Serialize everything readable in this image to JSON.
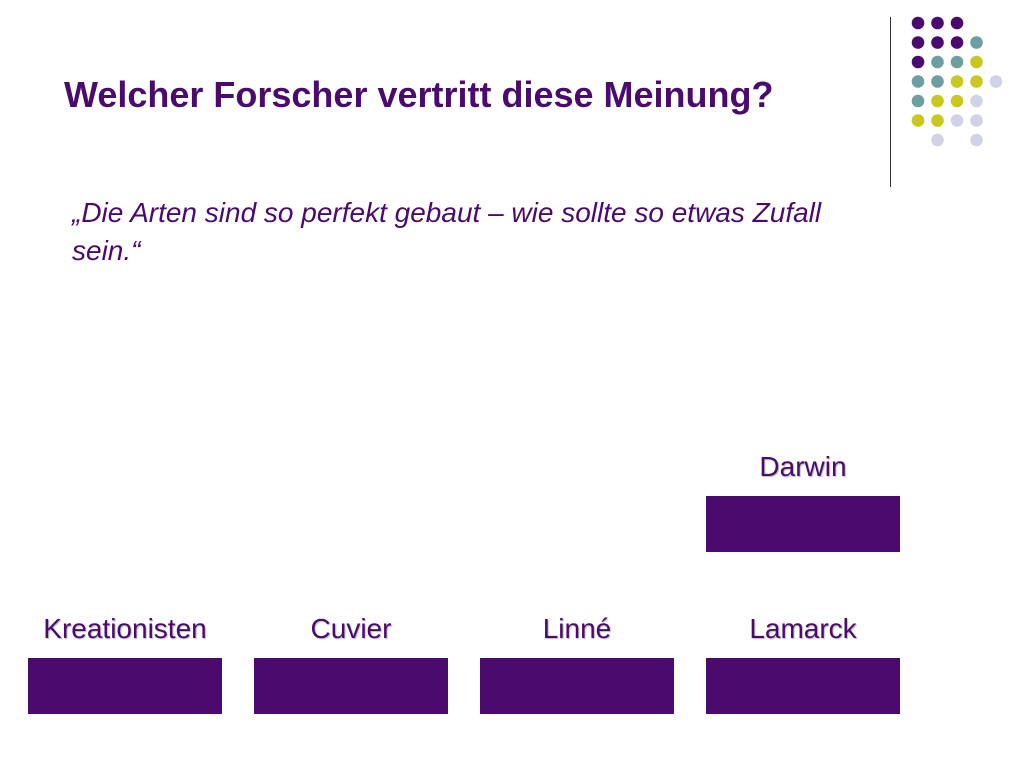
{
  "slide": {
    "title": "Welcher Forscher vertritt diese Meinung?",
    "quote": "„Die Arten sind so perfekt gebaut – wie sollte so etwas Zufall sein.“"
  },
  "answers": [
    {
      "label": "Kreationisten"
    },
    {
      "label": "Cuvier"
    },
    {
      "label": "Linné"
    },
    {
      "label": "Lamarck"
    },
    {
      "label": "Darwin"
    }
  ],
  "colors": {
    "purple": "#4b0a6e",
    "teal": "#6e9ea0",
    "olive": "#c8c81e",
    "lavender": "#d2d2e6"
  },
  "decoration": {
    "dot_grid": [
      [
        "purple",
        "purple",
        "purple",
        null
      ],
      [
        "purple",
        "purple",
        "purple",
        "teal"
      ],
      [
        "purple",
        "teal",
        "teal",
        "olive"
      ],
      [
        "teal",
        "teal",
        "olive",
        "olive",
        "lavender"
      ],
      [
        "teal",
        "olive",
        "olive",
        "lavender"
      ],
      [
        "olive",
        "olive",
        "lavender",
        "lavender"
      ],
      [
        null,
        "lavender",
        null,
        "lavender"
      ]
    ]
  }
}
